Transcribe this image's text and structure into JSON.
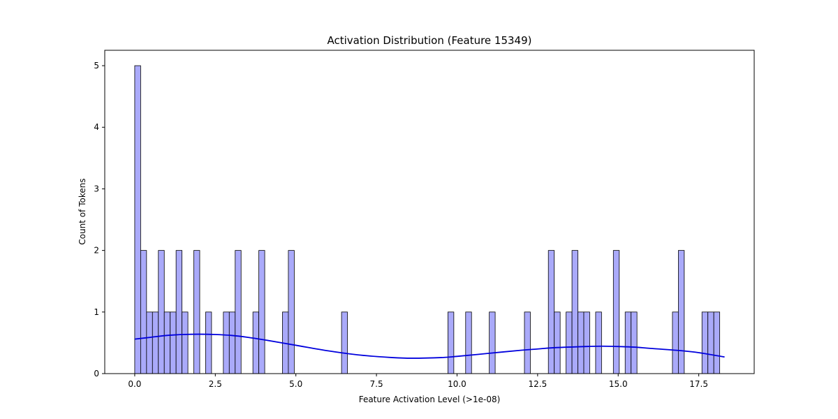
{
  "chart_data": {
    "type": "bar",
    "title": "Activation Distribution (Feature 15349)",
    "xlabel": "Feature Activation Level (>1e-08)",
    "ylabel": "Count of Tokens",
    "xlim": [
      -0.93,
      19.22
    ],
    "ylim": [
      0,
      5.25
    ],
    "x_ticks": [
      0.0,
      2.5,
      5.0,
      7.5,
      10.0,
      12.5,
      15.0,
      17.5
    ],
    "x_tick_labels": [
      "0.0",
      "2.5",
      "5.0",
      "7.5",
      "10.0",
      "12.5",
      "15.0",
      "17.5"
    ],
    "y_ticks": [
      0,
      1,
      2,
      3,
      4,
      5
    ],
    "y_tick_labels": [
      "0",
      "1",
      "2",
      "3",
      "4",
      "5"
    ],
    "grid": false,
    "bin_width": 0.1833,
    "bars": [
      {
        "x": 0.0,
        "count": 5
      },
      {
        "x": 0.1833,
        "count": 2
      },
      {
        "x": 0.3667,
        "count": 1
      },
      {
        "x": 0.55,
        "count": 1
      },
      {
        "x": 0.7333,
        "count": 2
      },
      {
        "x": 0.9167,
        "count": 1
      },
      {
        "x": 1.1,
        "count": 1
      },
      {
        "x": 1.2833,
        "count": 2
      },
      {
        "x": 1.4667,
        "count": 1
      },
      {
        "x": 1.8333,
        "count": 2
      },
      {
        "x": 2.2,
        "count": 1
      },
      {
        "x": 2.75,
        "count": 1
      },
      {
        "x": 2.9333,
        "count": 1
      },
      {
        "x": 3.1167,
        "count": 2
      },
      {
        "x": 3.6667,
        "count": 1
      },
      {
        "x": 3.85,
        "count": 2
      },
      {
        "x": 4.5833,
        "count": 1
      },
      {
        "x": 4.7667,
        "count": 2
      },
      {
        "x": 6.4167,
        "count": 1
      },
      {
        "x": 9.7167,
        "count": 1
      },
      {
        "x": 10.2667,
        "count": 1
      },
      {
        "x": 11.0,
        "count": 1
      },
      {
        "x": 12.0917,
        "count": 1
      },
      {
        "x": 12.8333,
        "count": 2
      },
      {
        "x": 13.0167,
        "count": 1
      },
      {
        "x": 13.3833,
        "count": 1
      },
      {
        "x": 13.5667,
        "count": 2
      },
      {
        "x": 13.75,
        "count": 1
      },
      {
        "x": 13.9333,
        "count": 1
      },
      {
        "x": 14.3,
        "count": 1
      },
      {
        "x": 14.85,
        "count": 2
      },
      {
        "x": 15.2167,
        "count": 1
      },
      {
        "x": 15.4,
        "count": 1
      },
      {
        "x": 16.6833,
        "count": 1
      },
      {
        "x": 16.8667,
        "count": 2
      },
      {
        "x": 17.6,
        "count": 1
      },
      {
        "x": 17.7833,
        "count": 1
      },
      {
        "x": 17.9667,
        "count": 1
      }
    ],
    "kde_line": {
      "x": [
        0.0,
        0.5,
        1.0,
        1.5,
        2.0,
        2.5,
        3.0,
        3.5,
        4.0,
        5.0,
        6.0,
        7.0,
        8.0,
        8.6,
        9.5,
        10.0,
        11.0,
        12.0,
        12.5,
        13.0,
        14.0,
        14.5,
        15.0,
        15.5,
        16.0,
        17.0,
        17.5,
        18.3
      ],
      "y": [
        0.56,
        0.59,
        0.62,
        0.635,
        0.64,
        0.635,
        0.62,
        0.59,
        0.55,
        0.46,
        0.37,
        0.3,
        0.26,
        0.25,
        0.26,
        0.28,
        0.33,
        0.38,
        0.4,
        0.42,
        0.44,
        0.445,
        0.44,
        0.43,
        0.41,
        0.37,
        0.34,
        0.27
      ]
    },
    "colors": {
      "bar_fill": "#aaaafa",
      "bar_edge": "#000000",
      "kde_line": "#0000dd"
    }
  }
}
